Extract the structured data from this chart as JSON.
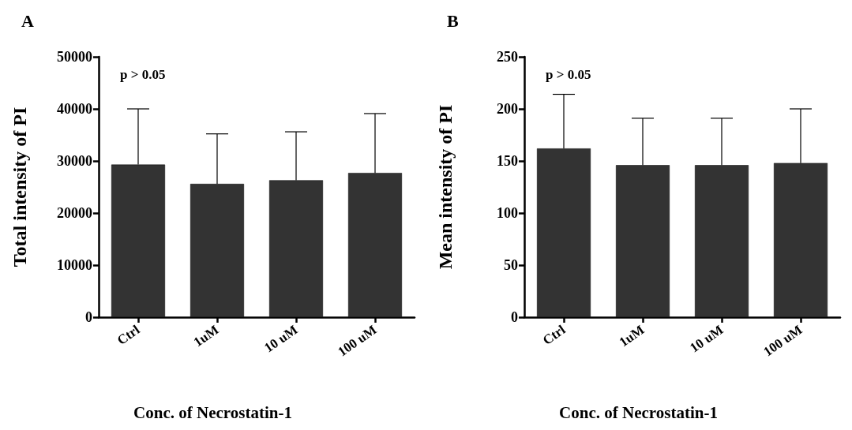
{
  "chart_data": [
    {
      "type": "bar",
      "title": "A",
      "categories": [
        "Ctrl",
        "1uM",
        "10 uM",
        "100 uM"
      ],
      "values": [
        29300,
        25600,
        26300,
        27700
      ],
      "errors": [
        [
          29300,
          40000
        ],
        [
          25600,
          35200
        ],
        [
          26300,
          35600
        ],
        [
          27700,
          39100
        ]
      ],
      "color": "#333333",
      "xlabel": "Conc. of Necrostatin-1",
      "ylabel": "Total intensity of PI",
      "ylim": [
        0,
        50000
      ],
      "yticks": [
        0,
        10000,
        20000,
        30000,
        40000,
        50000
      ],
      "grid": false,
      "annotations": [
        "p > 0.05"
      ]
    },
    {
      "type": "bar",
      "title": "B",
      "categories": [
        "Ctrl",
        "1uM",
        "10 uM",
        "100 uM"
      ],
      "values": [
        162,
        146,
        146,
        148
      ],
      "errors": [
        [
          162,
          214
        ],
        [
          146,
          191
        ],
        [
          146,
          191
        ],
        [
          148,
          200
        ]
      ],
      "color": "#333333",
      "xlabel": "Conc. of Necrostatin-1",
      "ylabel": "Mean intensity of PI",
      "ylim": [
        0,
        250
      ],
      "yticks": [
        0,
        50,
        100,
        150,
        200,
        250
      ],
      "grid": false,
      "annotations": [
        "p > 0.05"
      ]
    }
  ]
}
